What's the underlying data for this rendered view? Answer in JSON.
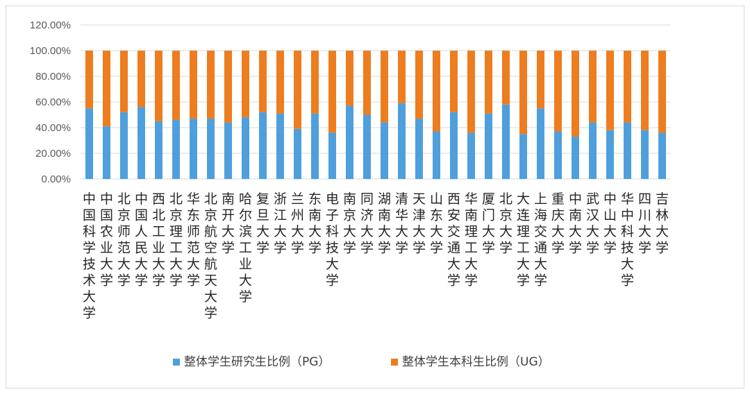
{
  "chart_data": {
    "type": "bar",
    "stacked": true,
    "categories": [
      "中国科学技术大学",
      "中国农业大学",
      "北京师范大学",
      "中国人民大学",
      "西北工业大学",
      "北京理工大学",
      "华东师范大学",
      "北京航空航天大学",
      "南开大学",
      "哈尔滨工业大学",
      "复旦大学",
      "浙江大学",
      "兰州大学",
      "东南大学",
      "电子科技大学",
      "南京大学",
      "同济大学",
      "湖南大学",
      "清华大学",
      "天津大学",
      "山东大学",
      "西安交通大学",
      "华南理工大学",
      "厦门大学",
      "北京大学",
      "大连理工大学",
      "上海交通大学",
      "重庆大学",
      "中南大学",
      "武汉大学",
      "中山大学",
      "华中科技大学",
      "四川大学",
      "吉林大学"
    ],
    "series": [
      {
        "name": "整体学生研究生比例（PG）",
        "color": "#4e9fdc",
        "values": [
          0.55,
          0.41,
          0.52,
          0.56,
          0.45,
          0.46,
          0.47,
          0.47,
          0.44,
          0.48,
          0.52,
          0.51,
          0.39,
          0.51,
          0.36,
          0.57,
          0.5,
          0.44,
          0.59,
          0.47,
          0.37,
          0.52,
          0.36,
          0.51,
          0.58,
          0.35,
          0.55,
          0.37,
          0.33,
          0.44,
          0.38,
          0.44,
          0.38,
          0.36
        ]
      },
      {
        "name": "整体学生本科生比例（UG）",
        "color": "#ed7d1f",
        "values": [
          0.45,
          0.59,
          0.48,
          0.44,
          0.55,
          0.54,
          0.53,
          0.53,
          0.56,
          0.52,
          0.48,
          0.49,
          0.61,
          0.49,
          0.64,
          0.43,
          0.5,
          0.56,
          0.41,
          0.53,
          0.63,
          0.48,
          0.64,
          0.49,
          0.42,
          0.65,
          0.45,
          0.63,
          0.67,
          0.56,
          0.62,
          0.56,
          0.62,
          0.64
        ]
      }
    ],
    "y_ticks": [
      "0.00%",
      "20.00%",
      "40.00%",
      "60.00%",
      "80.00%",
      "100.00%",
      "120.00%"
    ],
    "ylim": [
      0,
      1.2
    ],
    "grid": true,
    "legend_position": "bottom"
  }
}
